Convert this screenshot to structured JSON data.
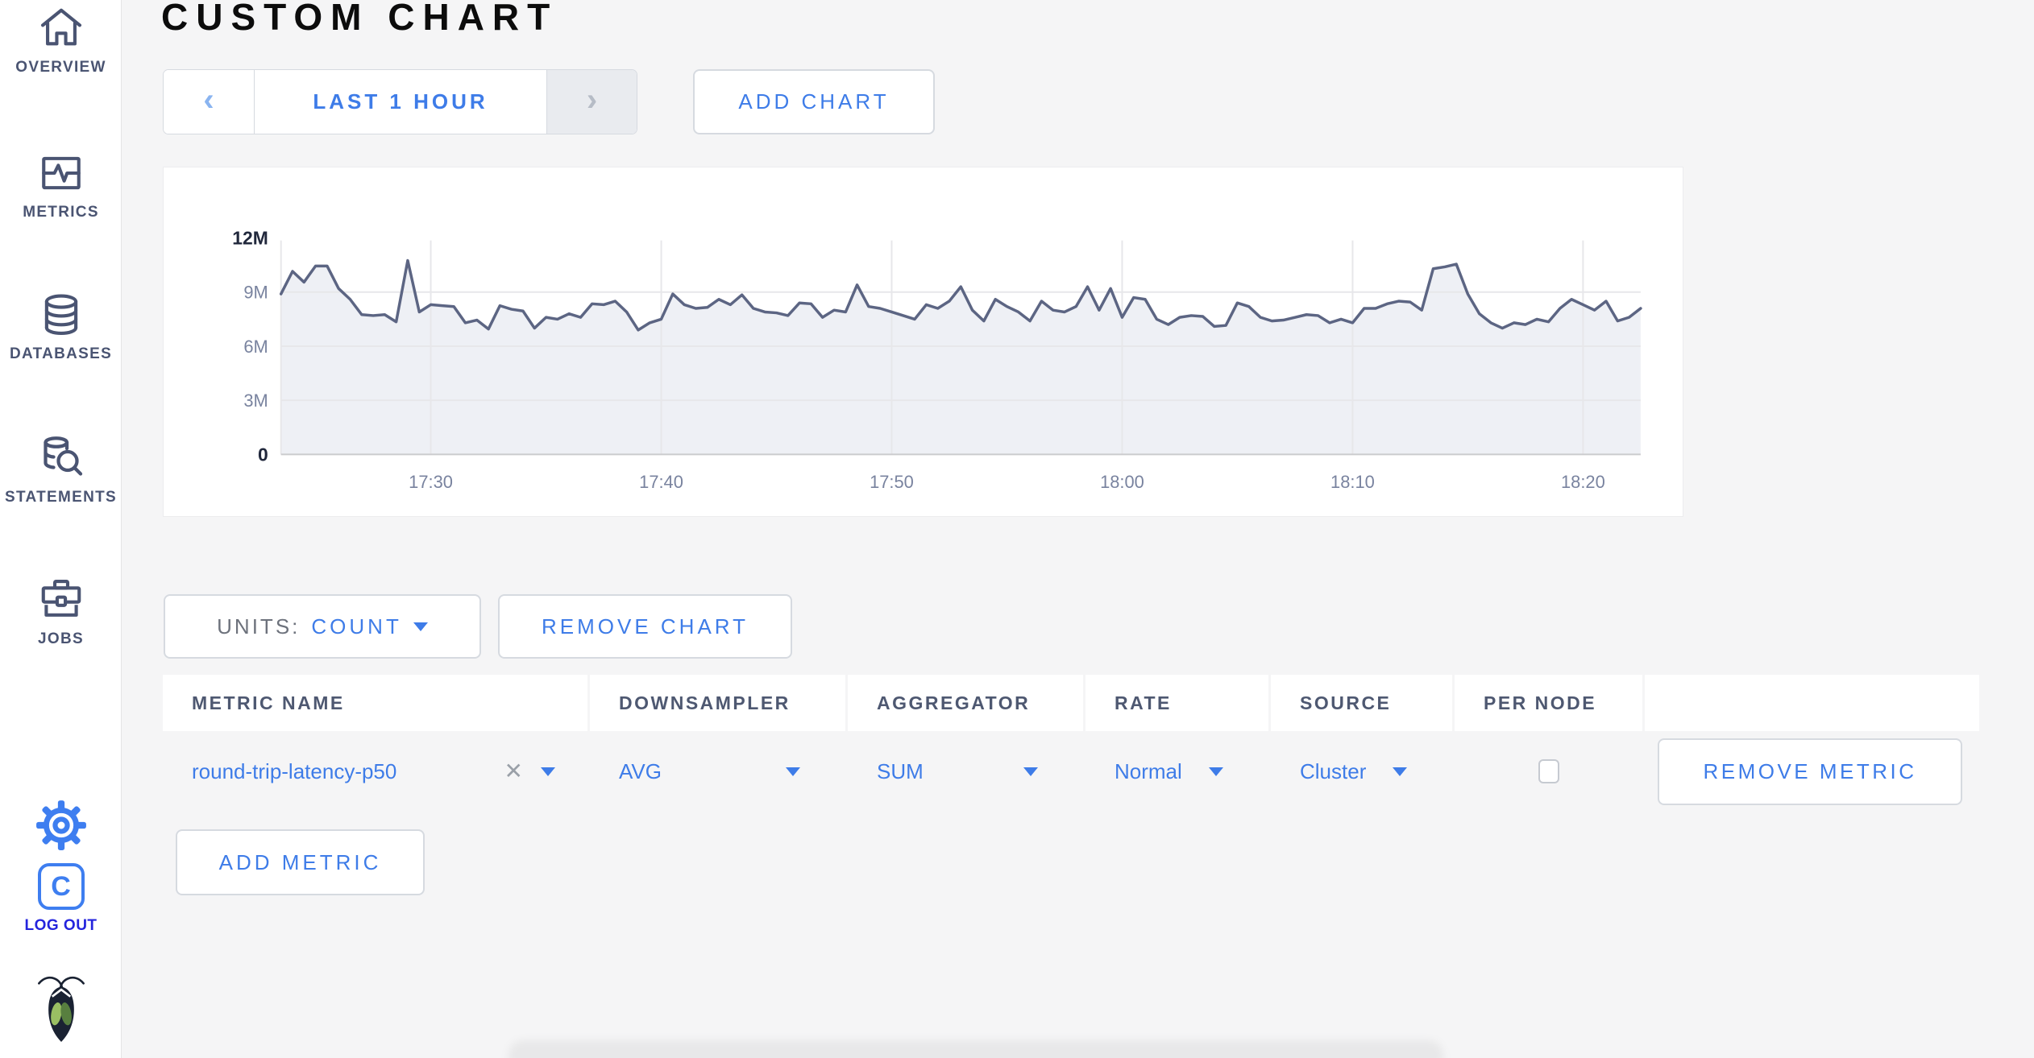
{
  "sidebar": {
    "items": [
      {
        "label": "OVERVIEW",
        "icon": "home-icon"
      },
      {
        "label": "METRICS",
        "icon": "metrics-icon"
      },
      {
        "label": "DATABASES",
        "icon": "database-icon"
      },
      {
        "label": "STATEMENTS",
        "icon": "statements-icon"
      },
      {
        "label": "JOBS",
        "icon": "briefcase-icon"
      }
    ],
    "settings_icon": "gear-icon",
    "logo_letter": "C",
    "logout_label": "LOG OUT",
    "brand_icon": "cockroach-bug-icon"
  },
  "header": {
    "title": "CUSTOM CHART",
    "time_range": {
      "prev": "‹",
      "label": "LAST 1 HOUR",
      "next": "›"
    },
    "add_chart_label": "ADD CHART"
  },
  "chart_controls": {
    "units_label": "UNITS:",
    "units_value": "COUNT",
    "remove_chart_label": "REMOVE CHART",
    "add_metric_label": "ADD METRIC"
  },
  "metrics_table": {
    "columns": [
      "METRIC NAME",
      "DOWNSAMPLER",
      "AGGREGATOR",
      "RATE",
      "SOURCE",
      "PER NODE"
    ],
    "rows": [
      {
        "metric_name": "round-trip-latency-p50",
        "downsampler": "AVG",
        "aggregator": "SUM",
        "rate": "Normal",
        "source": "Cluster",
        "per_node_checked": false,
        "remove_label": "REMOVE METRIC"
      }
    ]
  },
  "chart_data": {
    "type": "area",
    "title": "",
    "xlabel": "",
    "ylabel": "count",
    "ylim": [
      0,
      12000000
    ],
    "grid": true,
    "legend": "none",
    "x_start_min": -6.5,
    "x_end_min": 52.5,
    "xticks": [
      {
        "m": 0,
        "label": "17:30"
      },
      {
        "m": 10,
        "label": "17:40"
      },
      {
        "m": 20,
        "label": "17:50"
      },
      {
        "m": 30,
        "label": "18:00"
      },
      {
        "m": 40,
        "label": "18:10"
      },
      {
        "m": 50,
        "label": "18:20"
      }
    ],
    "yticks": [
      {
        "v": 0,
        "label": "0",
        "strong": true
      },
      {
        "v": 3000000,
        "label": "3M",
        "strong": false
      },
      {
        "v": 6000000,
        "label": "6M",
        "strong": false
      },
      {
        "v": 9000000,
        "label": "9M",
        "strong": false
      },
      {
        "v": 12000000,
        "label": "12M",
        "strong": true
      }
    ],
    "series_name": "round-trip-latency-p50",
    "values_millions": [
      8.9,
      10.15,
      9.55,
      10.45,
      10.45,
      9.2,
      8.6,
      7.75,
      7.7,
      7.75,
      7.35,
      10.75,
      7.9,
      8.3,
      8.25,
      8.2,
      7.3,
      7.45,
      6.95,
      8.25,
      8.05,
      7.95,
      7.0,
      7.6,
      7.5,
      7.8,
      7.6,
      8.35,
      8.3,
      8.5,
      7.9,
      6.9,
      7.3,
      7.5,
      8.9,
      8.3,
      8.1,
      8.15,
      8.6,
      8.3,
      8.85,
      8.1,
      7.9,
      7.85,
      7.7,
      8.4,
      8.35,
      7.6,
      8.0,
      7.9,
      9.4,
      8.2,
      8.1,
      7.9,
      7.7,
      7.5,
      8.3,
      8.1,
      8.5,
      9.3,
      8.0,
      7.4,
      8.6,
      8.2,
      7.9,
      7.4,
      8.5,
      8.0,
      7.9,
      8.2,
      9.3,
      8.0,
      9.2,
      7.6,
      8.7,
      8.6,
      7.5,
      7.2,
      7.6,
      7.7,
      7.65,
      7.1,
      7.15,
      8.4,
      8.2,
      7.6,
      7.4,
      7.45,
      7.6,
      7.75,
      7.7,
      7.3,
      7.5,
      7.3,
      8.1,
      8.1,
      8.35,
      8.5,
      8.45,
      8.0,
      10.3,
      10.4,
      10.55,
      8.9,
      7.8,
      7.3,
      7.0,
      7.3,
      7.2,
      7.5,
      7.35,
      8.1,
      8.6,
      8.3,
      8.0,
      8.5,
      7.4,
      7.6,
      8.1
    ]
  },
  "colors": {
    "accent_blue": "#3e7ce8",
    "light_blue": "#8ab4f0",
    "disabled_gray": "#b6bcc6",
    "slate": "#4a5472",
    "slate_light": "#79839f",
    "tick_dark": "#21283c",
    "line": "#5c6583",
    "fill": "#eef0f5",
    "grid": "#e7e7ea",
    "logout_blue": "#2424dd",
    "page_bg": "#f5f5f6",
    "gear_blue": "#3e7ef0",
    "bug_dark": "#1a2232",
    "leaf_light": "#9abf63",
    "leaf_dark": "#587f3f"
  }
}
